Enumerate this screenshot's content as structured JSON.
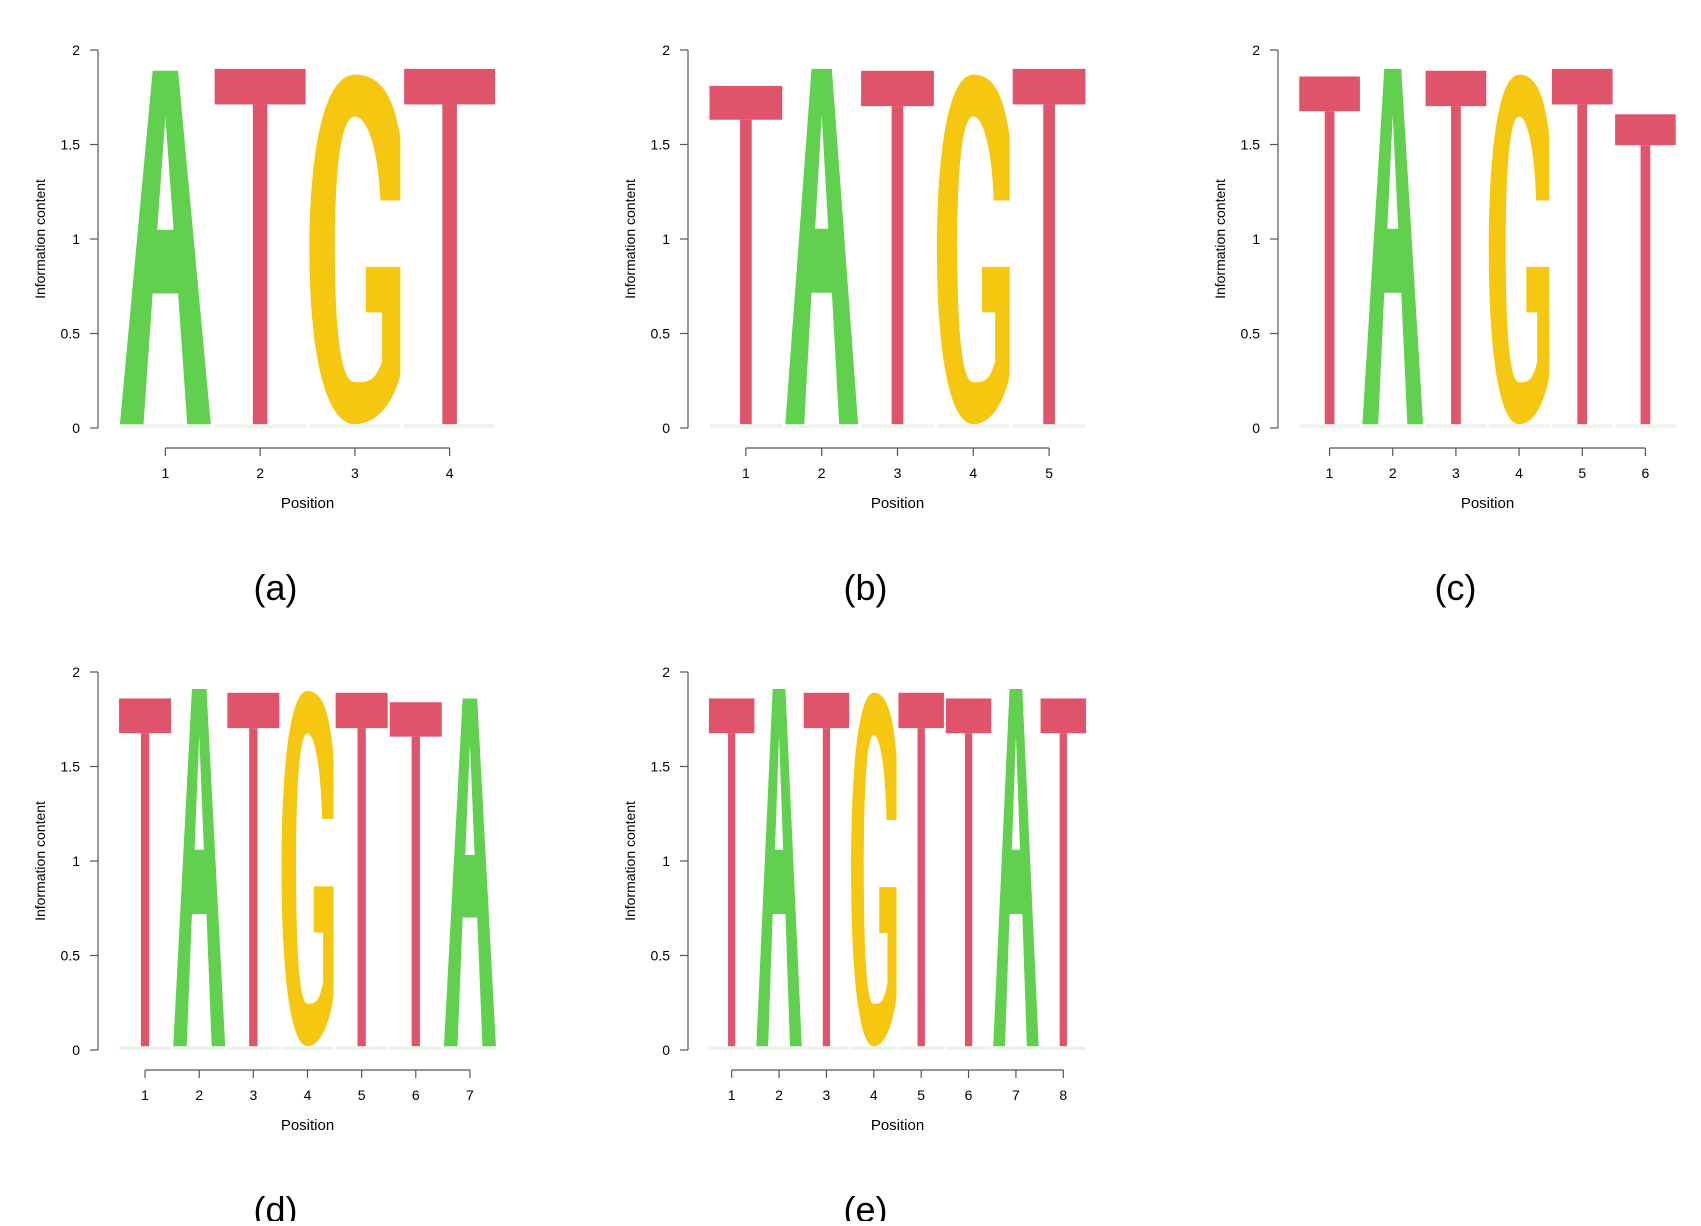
{
  "colors": {
    "A": "#61d04f",
    "C": "#2297e6",
    "G": "#f5c710",
    "T": "#df536b"
  },
  "chart_data": [
    {
      "type": "sequence-logo",
      "panel_label": "(a)",
      "xlabel": "Position",
      "ylabel": "Information content",
      "ylim": [
        0,
        2
      ],
      "yticks": [
        0,
        0.5,
        1,
        1.5,
        2
      ],
      "ytick_labels": [
        "0",
        "0.5",
        "1",
        "1.5",
        "2"
      ],
      "positions": [
        1,
        2,
        3,
        4
      ],
      "letters": [
        "A",
        "T",
        "G",
        "T"
      ],
      "values": [
        1.89,
        1.9,
        1.87,
        1.9
      ]
    },
    {
      "type": "sequence-logo",
      "panel_label": "(b)",
      "xlabel": "Position",
      "ylabel": "Information content",
      "ylim": [
        0,
        2
      ],
      "yticks": [
        0,
        0.5,
        1,
        1.5,
        2
      ],
      "ytick_labels": [
        "0",
        "0.5",
        "1",
        "1.5",
        "2"
      ],
      "positions": [
        1,
        2,
        3,
        4,
        5
      ],
      "letters": [
        "T",
        "A",
        "T",
        "G",
        "T"
      ],
      "values": [
        1.81,
        1.9,
        1.89,
        1.87,
        1.9
      ]
    },
    {
      "type": "sequence-logo",
      "panel_label": "(c)",
      "xlabel": "Position",
      "ylabel": "Information content",
      "ylim": [
        0,
        2
      ],
      "yticks": [
        0,
        0.5,
        1,
        1.5,
        2
      ],
      "ytick_labels": [
        "0",
        "0.5",
        "1",
        "1.5",
        "2"
      ],
      "positions": [
        1,
        2,
        3,
        4,
        5,
        6
      ],
      "letters": [
        "T",
        "A",
        "T",
        "G",
        "T",
        "T"
      ],
      "values": [
        1.86,
        1.9,
        1.89,
        1.87,
        1.9,
        1.66
      ]
    },
    {
      "type": "sequence-logo",
      "panel_label": "(d)",
      "xlabel": "Position",
      "ylabel": "Information content",
      "ylim": [
        0,
        2
      ],
      "yticks": [
        0,
        0.5,
        1,
        1.5,
        2
      ],
      "ytick_labels": [
        "0",
        "0.5",
        "1",
        "1.5",
        "2"
      ],
      "positions": [
        1,
        2,
        3,
        4,
        5,
        6,
        7
      ],
      "letters": [
        "T",
        "A",
        "T",
        "G",
        "T",
        "T",
        "A"
      ],
      "values": [
        1.86,
        1.91,
        1.89,
        1.9,
        1.89,
        1.84,
        1.86
      ]
    },
    {
      "type": "sequence-logo",
      "panel_label": "(e)",
      "xlabel": "Position",
      "ylabel": "Information content",
      "ylim": [
        0,
        2
      ],
      "yticks": [
        0,
        0.5,
        1,
        1.5,
        2
      ],
      "ytick_labels": [
        "0",
        "0.5",
        "1",
        "1.5",
        "2"
      ],
      "positions": [
        1,
        2,
        3,
        4,
        5,
        6,
        7,
        8
      ],
      "letters": [
        "T",
        "A",
        "T",
        "G",
        "T",
        "T",
        "A",
        "T"
      ],
      "values": [
        1.86,
        1.91,
        1.89,
        1.89,
        1.89,
        1.86,
        1.91,
        1.86
      ]
    }
  ]
}
